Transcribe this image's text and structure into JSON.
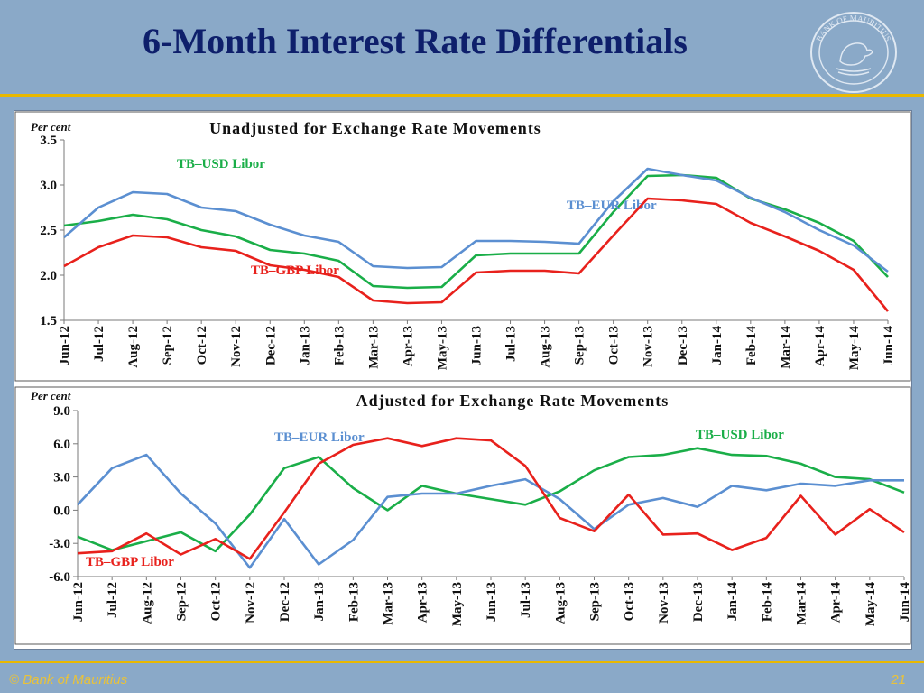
{
  "slide": {
    "title": "6-Month Interest Rate Differentials",
    "logo_text": "BANK OF MAURITIUS",
    "footer_left": "© Bank of Mauritius",
    "page_number": "21"
  },
  "colors": {
    "background": "#8aa9c8",
    "title": "#0e1f6b",
    "gold": "#e9b800",
    "usd": "#1aae48",
    "eur": "#5b8fd1",
    "gbp": "#e8211c"
  },
  "chart_data": [
    {
      "type": "line",
      "title": "Unadjusted for Exchange Rate Movements",
      "ylabel": "Per cent",
      "ylim": [
        1.5,
        3.5
      ],
      "yticks": [
        "3.5",
        "3.0",
        "2.5",
        "2.0",
        "1.5"
      ],
      "grid": false,
      "categories": [
        "Jun-12",
        "Jul-12",
        "Aug-12",
        "Sep-12",
        "Oct-12",
        "Nov-12",
        "Dec-12",
        "Jan-13",
        "Feb-13",
        "Mar-13",
        "Apr-13",
        "May-13",
        "Jun-13",
        "Jul-13",
        "Aug-13",
        "Sep-13",
        "Oct-13",
        "Nov-13",
        "Dec-13",
        "Jan-14",
        "Feb-14",
        "Mar-14",
        "Apr-14",
        "May-14",
        "Jun-14"
      ],
      "series": [
        {
          "name": "TB–USD Libor",
          "color": "#1aae48",
          "values": [
            2.55,
            2.6,
            2.67,
            2.62,
            2.5,
            2.43,
            2.28,
            2.24,
            2.16,
            1.88,
            1.86,
            1.87,
            2.22,
            2.24,
            2.24,
            2.24,
            2.7,
            3.1,
            3.11,
            3.08,
            2.85,
            2.73,
            2.58,
            2.38,
            1.98
          ]
        },
        {
          "name": "TB–EUR Libor",
          "color": "#5b8fd1",
          "values": [
            2.42,
            2.75,
            2.92,
            2.9,
            2.75,
            2.71,
            2.56,
            2.44,
            2.37,
            2.1,
            2.08,
            2.09,
            2.38,
            2.38,
            2.37,
            2.35,
            2.82,
            3.18,
            3.11,
            3.05,
            2.86,
            2.7,
            2.5,
            2.33,
            2.04
          ]
        },
        {
          "name": "TB–GBP Libor",
          "color": "#e8211c",
          "values": [
            2.1,
            2.31,
            2.44,
            2.42,
            2.31,
            2.27,
            2.11,
            2.06,
            1.98,
            1.72,
            1.69,
            1.7,
            2.03,
            2.05,
            2.05,
            2.02,
            2.44,
            2.85,
            2.83,
            2.79,
            2.58,
            2.43,
            2.27,
            2.06,
            1.6
          ]
        }
      ]
    },
    {
      "type": "line",
      "title": "Adjusted for Exchange Rate Movements",
      "ylabel": "Per cent",
      "ylim": [
        -6.0,
        9.0
      ],
      "yticks": [
        "9.0",
        "6.0",
        "3.0",
        "0.0",
        "-3.0",
        "-6.0"
      ],
      "grid": false,
      "categories": [
        "Jun-12",
        "Jul-12",
        "Aug-12",
        "Sep-12",
        "Oct-12",
        "Nov-12",
        "Dec-12",
        "Jan-13",
        "Feb-13",
        "Mar-13",
        "Apr-13",
        "May-13",
        "Jun-13",
        "Jul-13",
        "Aug-13",
        "Sep-13",
        "Oct-13",
        "Nov-13",
        "Dec-13",
        "Jan-14",
        "Feb-14",
        "Mar-14",
        "Apr-14",
        "May-14",
        "Jun-14"
      ],
      "series": [
        {
          "name": "TB–USD Libor",
          "color": "#1aae48",
          "values": [
            -2.4,
            -3.6,
            -2.8,
            -2.0,
            -3.7,
            -0.4,
            3.8,
            4.8,
            2.0,
            0.0,
            2.2,
            1.5,
            1.0,
            0.5,
            1.7,
            3.6,
            4.8,
            5.0,
            5.6,
            5.0,
            4.9,
            4.2,
            3.0,
            2.8,
            1.6
          ]
        },
        {
          "name": "TB–EUR Libor",
          "color": "#5b8fd1",
          "values": [
            0.5,
            3.8,
            5.0,
            1.5,
            -1.2,
            -5.2,
            -0.8,
            -4.9,
            -2.7,
            1.2,
            1.5,
            1.5,
            2.2,
            2.8,
            1.0,
            -1.7,
            0.5,
            1.1,
            0.3,
            2.2,
            1.8,
            2.4,
            2.2,
            2.7,
            2.7
          ]
        },
        {
          "name": "TB–GBP Libor",
          "color": "#e8211c",
          "values": [
            -3.9,
            -3.7,
            -2.1,
            -4.0,
            -2.6,
            -4.4,
            -0.2,
            4.2,
            5.9,
            6.5,
            5.8,
            6.5,
            6.3,
            4.0,
            -0.7,
            -1.9,
            1.4,
            -2.2,
            -2.1,
            -3.6,
            -2.5,
            1.3,
            -2.2,
            0.1,
            -2.0
          ]
        }
      ]
    }
  ]
}
